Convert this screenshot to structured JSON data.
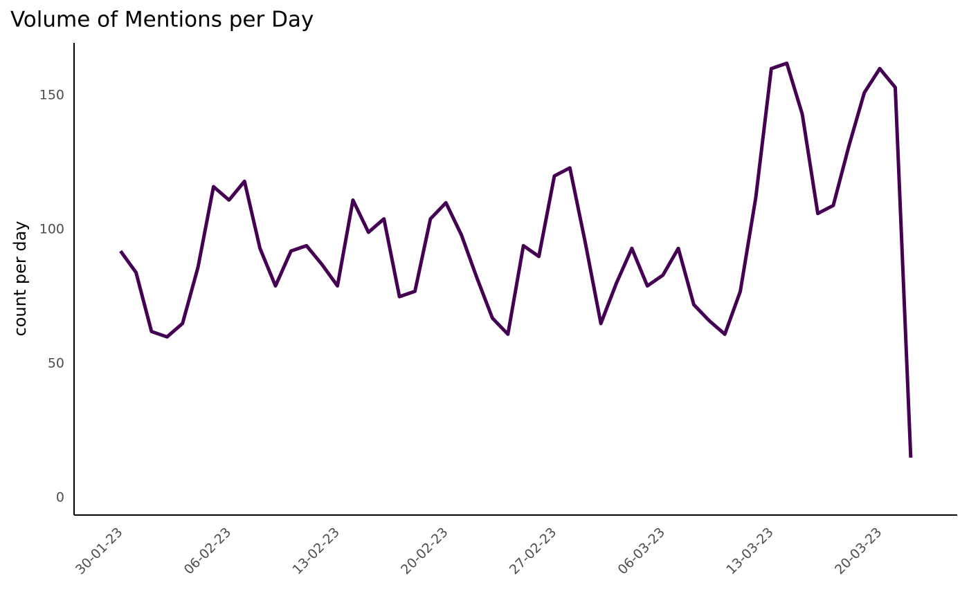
{
  "chart_data": {
    "type": "line",
    "title": "Volume of Mentions per Day",
    "y_label": "count per day",
    "x": [
      "2023-01-30",
      "2023-01-31",
      "2023-02-01",
      "2023-02-02",
      "2023-02-03",
      "2023-02-04",
      "2023-02-05",
      "2023-02-06",
      "2023-02-07",
      "2023-02-08",
      "2023-02-09",
      "2023-02-10",
      "2023-02-11",
      "2023-02-12",
      "2023-02-13",
      "2023-02-14",
      "2023-02-15",
      "2023-02-16",
      "2023-02-17",
      "2023-02-18",
      "2023-02-19",
      "2023-02-20",
      "2023-02-21",
      "2023-02-22",
      "2023-02-23",
      "2023-02-24",
      "2023-02-25",
      "2023-02-26",
      "2023-02-27",
      "2023-02-28",
      "2023-03-01",
      "2023-03-02",
      "2023-03-03",
      "2023-03-04",
      "2023-03-05",
      "2023-03-06",
      "2023-03-07",
      "2023-03-08",
      "2023-03-09",
      "2023-03-10",
      "2023-03-11",
      "2023-03-12",
      "2023-03-13",
      "2023-03-14",
      "2023-03-15",
      "2023-03-16",
      "2023-03-17",
      "2023-03-18",
      "2023-03-19",
      "2023-03-20",
      "2023-03-21",
      "2023-03-22"
    ],
    "series": [
      {
        "name": "count per day",
        "color": "#440154",
        "values": [
          92,
          84,
          62,
          60,
          65,
          86,
          116,
          111,
          118,
          93,
          79,
          92,
          94,
          87,
          79,
          111,
          99,
          104,
          75,
          77,
          104,
          110,
          98,
          82,
          67,
          61,
          94,
          90,
          120,
          123,
          95,
          65,
          80,
          93,
          79,
          83,
          93,
          72,
          66,
          61,
          77,
          112,
          160,
          162,
          143,
          106,
          109,
          131,
          151,
          160,
          153,
          15
        ]
      }
    ],
    "xlim": [
      "2023-01-27",
      "2023-03-25"
    ],
    "xticks": [
      {
        "value": "2023-01-30",
        "label": "30-01-23"
      },
      {
        "value": "2023-02-06",
        "label": "06-02-23"
      },
      {
        "value": "2023-02-13",
        "label": "13-02-23"
      },
      {
        "value": "2023-02-20",
        "label": "20-02-23"
      },
      {
        "value": "2023-02-27",
        "label": "27-02-23"
      },
      {
        "value": "2023-03-06",
        "label": "06-03-23"
      },
      {
        "value": "2023-03-13",
        "label": "13-03-23"
      },
      {
        "value": "2023-03-20",
        "label": "20-03-23"
      }
    ],
    "ylim": [
      -6.4,
      169.6
    ],
    "yticks": [
      0,
      50,
      100,
      150
    ],
    "grid": false
  }
}
